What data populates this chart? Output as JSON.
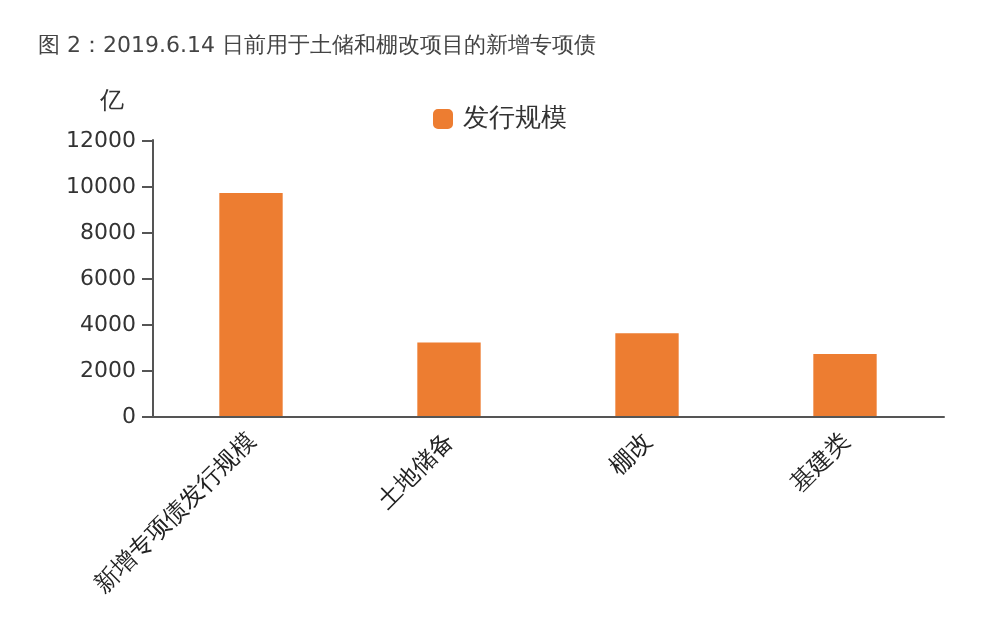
{
  "chart_data": {
    "type": "bar",
    "title": "图 2：2019.6.14 日前用于土储和棚改项目的新增专项债",
    "ylabel": "亿",
    "categories": [
      "新增专项债发行规模",
      "土地储备",
      "棚改",
      "基建类"
    ],
    "series": [
      {
        "name": "发行规模",
        "color": "#ed7d31",
        "values": [
          9700,
          3200,
          3600,
          2700
        ]
      }
    ],
    "ylim": [
      0,
      12000
    ],
    "yticks": [
      0,
      2000,
      4000,
      6000,
      8000,
      10000,
      12000
    ],
    "grid": false,
    "legend": "top"
  }
}
